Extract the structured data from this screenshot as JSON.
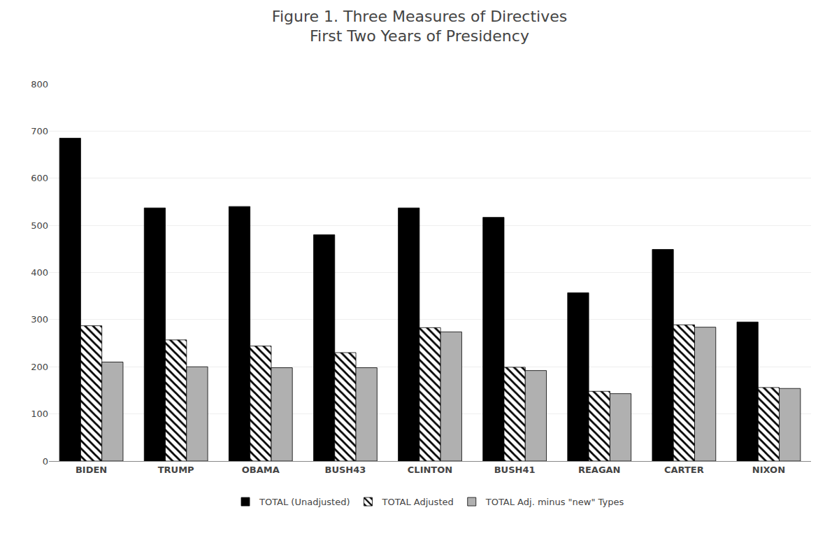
{
  "chart_data": {
    "type": "bar",
    "title": "Figure 1. Three Measures of Directives\nFirst Two Years of Presidency",
    "categories": [
      "BIDEN",
      "TRUMP",
      "OBAMA",
      "BUSH43",
      "CLINTON",
      "BUSH41",
      "REAGAN",
      "CARTER",
      "NIXON"
    ],
    "series": [
      {
        "name": "TOTAL (Unadjusted)",
        "color": "#000000",
        "values": [
          685,
          537,
          540,
          480,
          537,
          517,
          357,
          449,
          295
        ]
      },
      {
        "name": "TOTAL Adjusted",
        "color": "#ffffff",
        "marker": "hatch",
        "values": [
          287,
          257,
          244,
          230,
          283,
          199,
          148,
          289,
          156
        ]
      },
      {
        "name": "TOTAL Adj. minus \"new\" Types",
        "color": "#b0b0b0",
        "values": [
          210,
          200,
          198,
          198,
          274,
          192,
          143,
          284,
          154
        ]
      }
    ],
    "ylim": [
      0,
      800
    ],
    "yticks": [
      0,
      100,
      200,
      300,
      400,
      500,
      600,
      700,
      800
    ],
    "grid": true,
    "legend": "bottom"
  }
}
